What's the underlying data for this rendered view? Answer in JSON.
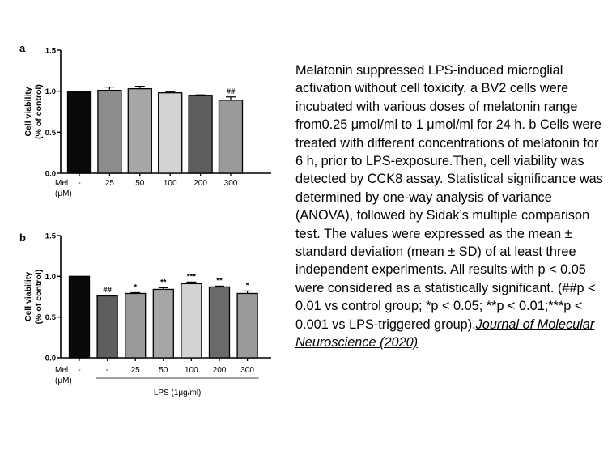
{
  "chart_data": [
    {
      "type": "bar",
      "panel_label": "a",
      "ylabel_line1": "Cell viability",
      "ylabel_line2": "(% of control)",
      "xlabel_line1": "Mel",
      "xlabel_line2": "(μM)",
      "ylim": [
        0,
        1.5
      ],
      "yticks": [
        "0.0",
        "0.5",
        "1.0",
        "1.5"
      ],
      "categories": [
        "-",
        "25",
        "50",
        "100",
        "200",
        "300"
      ],
      "values": [
        1.0,
        1.01,
        1.03,
        0.98,
        0.95,
        0.89
      ],
      "errors": [
        0.0,
        0.04,
        0.03,
        0.01,
        0.005,
        0.04
      ],
      "significance": [
        "",
        "",
        "",
        "",
        "",
        "##"
      ],
      "bar_colors": [
        "#0a0a0a",
        "#8c8c8c",
        "#a6a6a6",
        "#d3d3d3",
        "#5e5e5e",
        "#9a9a9a"
      ]
    },
    {
      "type": "bar",
      "panel_label": "b",
      "ylabel_line1": "Cell viability",
      "ylabel_line2": "(% of control)",
      "xlabel_line1": "Mel",
      "xlabel_line2": "(μM)",
      "group_label": "LPS (1μg/ml)",
      "ylim": [
        0,
        1.5
      ],
      "yticks": [
        "0.0",
        "0.5",
        "1.0",
        "1.5"
      ],
      "categories": [
        "-",
        "-",
        "25",
        "50",
        "100",
        "200",
        "300"
      ],
      "values": [
        1.0,
        0.76,
        0.79,
        0.84,
        0.91,
        0.87,
        0.79
      ],
      "errors": [
        0.0,
        0.005,
        0.01,
        0.02,
        0.02,
        0.01,
        0.03
      ],
      "significance": [
        "",
        "##",
        "*",
        "**",
        "***",
        "**",
        "*"
      ],
      "bar_colors": [
        "#0a0a0a",
        "#5e5e5e",
        "#9a9a9a",
        "#a6a6a6",
        "#d3d3d3",
        "#6a6a6a",
        "#9a9a9a"
      ]
    }
  ],
  "caption": {
    "text": "Melatonin suppressed LPS-induced microglial activation without cell toxicity. a BV2 cells were incubated with various doses of melatonin range from0.25 μmol/ml to 1 μmol/ml for 24 h. b Cells were treated with different concentrations of melatonin for 6 h, prior to LPS-exposure.Then, cell viability was detected by CCK8 assay. Statistical significance was determined by one-way analysis of variance (ANOVA), followed by Sidak’s multiple comparison test. The values were expressed as the mean ± standard deviation (mean ± SD) of at least three independent experiments. All results with p < 0.05 were considered as a statistically significant. (##p < 0.01 vs control group; *p < 0.05; **p < 0.01;***p < 0.001 vs LPS-triggered group).",
    "citation": "Journal of Molecular Neuroscience (2020)"
  }
}
